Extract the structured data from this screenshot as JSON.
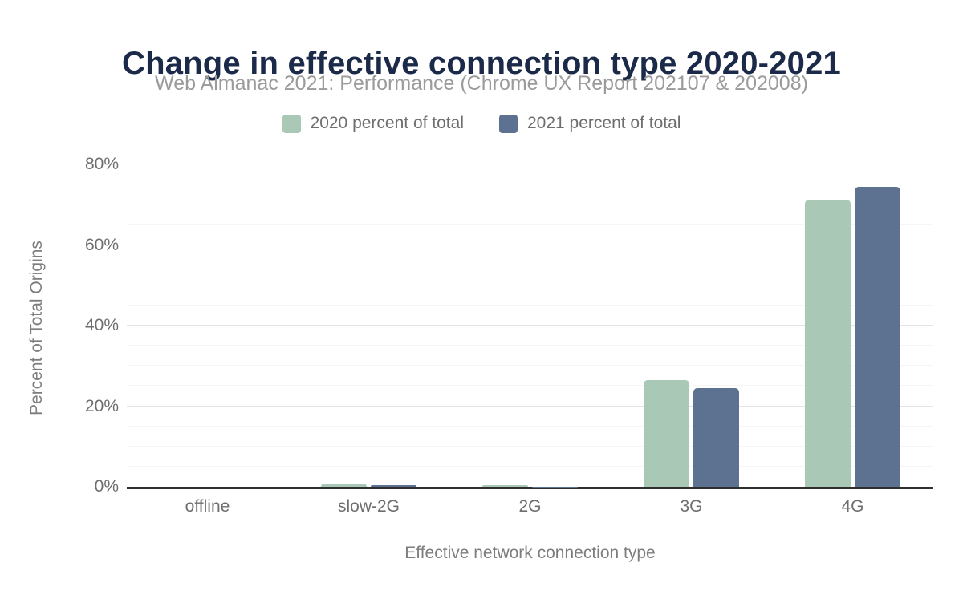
{
  "title": "Change in effective connection type 2020-2021",
  "subtitle": "Web Almanac 2021: Performance (Chrome UX Report 202107 & 202008)",
  "colors": {
    "title_text": "#1b2a49",
    "subtitle_text": "#9b9b9b",
    "axis_text": "#6e6e6e",
    "axis_line": "#2f2f2f",
    "grid_major": "#e4e4e4",
    "grid_minor": "#f5f5f5",
    "series_2020": "#a9c9b6",
    "series_2021": "#5d7190"
  },
  "legend": {
    "items": [
      {
        "label": "2020 percent of total",
        "color": "#a9c9b6"
      },
      {
        "label": "2021 percent of total",
        "color": "#5d7190"
      }
    ]
  },
  "chart_data": {
    "type": "bar",
    "title": "Change in effective connection type 2020-2021",
    "subtitle": "Web Almanac 2021: Performance (Chrome UX Report 202107 & 202008)",
    "categories": [
      "offline",
      "slow-2G",
      "2G",
      "3G",
      "4G"
    ],
    "series": [
      {
        "name": "2020 percent of total",
        "color": "#a9c9b6",
        "values": [
          0.0,
          0.8,
          0.4,
          26.5,
          71.3
        ]
      },
      {
        "name": "2021 percent of total",
        "color": "#5d7190",
        "values": [
          0.0,
          0.5,
          0.1,
          24.4,
          74.4
        ]
      }
    ],
    "xlabel": "Effective network connection type",
    "ylabel": "Percent of Total Origins",
    "ylim": [
      0,
      80
    ],
    "ytick_major_step": 20,
    "ytick_minor_step": 5,
    "ytick_labels": [
      "0%",
      "20%",
      "40%",
      "60%",
      "80%"
    ],
    "ytick_format": "percent",
    "grid": true,
    "legend_position": "top"
  }
}
